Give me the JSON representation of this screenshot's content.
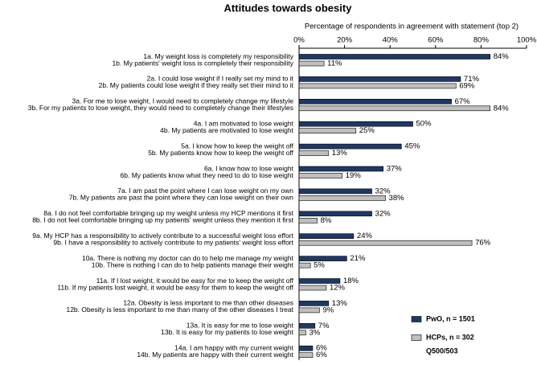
{
  "chart_data": {
    "type": "bar",
    "orientation": "horizontal",
    "title": "Attitudes towards obesity",
    "x_label": "Percentage of respondents in agreement with statement (top 2)",
    "xlim": [
      0,
      100
    ],
    "xticks": [
      {
        "value": 0,
        "label": "0%"
      },
      {
        "value": 20,
        "label": "20%"
      },
      {
        "value": 40,
        "label": "40%"
      },
      {
        "value": 60,
        "label": "60%"
      },
      {
        "value": 80,
        "label": "80%"
      },
      {
        "value": 100,
        "label": "100%"
      }
    ],
    "series": [
      {
        "name": "PwO, n = 1501",
        "color": "#1f3864",
        "labels": [
          "1a. My weight loss is completely my responsibility",
          "2a. I could lose weight if I really set my mind to it",
          "3a. For me to lose weight, I would need to completely change my lifestyle",
          "4a. I am motivated to lose weight",
          "5a. I know how to keep the weight off",
          "6a. I know how to lose weight",
          "7a. I am past the point where I can lose weight on my own",
          "8a. I do not feel comfortable bringing up my weight unless my HCP mentions it first",
          "9a. My HCP has a responsibility to actively contribute to a successful weight loss effort",
          "10a. There is nothing my doctor can do to help me manage my weight",
          "11a. If I lost weight, it would be easy for me to keep the weight off",
          "12a. Obesity is less important to me than other diseases",
          "13a. It is easy for me to lose weight",
          "14a. I am happy with my current weight"
        ],
        "values": [
          84,
          71,
          67,
          50,
          45,
          37,
          32,
          32,
          24,
          21,
          18,
          13,
          7,
          6
        ],
        "value_labels": [
          "84%",
          "71%",
          "67%",
          "50%",
          "45%",
          "37%",
          "32%",
          "32%",
          "24%",
          "21%",
          "18%",
          "13%",
          "7%",
          "6%"
        ]
      },
      {
        "name": "HCPs, n = 302",
        "color": "#bfbfbf",
        "labels": [
          "1b. My patients' weight loss is completely their responsibility",
          "2b. My patients could lose weight if they really set their mind to it",
          "3b. For my patients to lose weight, they would need to completely change their lifestyles",
          "4b. My patients are motivated to lose weight",
          "5b. My patients know how to keep the weight off",
          "6b. My patients know what they need to do to lose weight",
          "7b. My patients are past the point where they can lose weight on their own",
          "8b. I do not feel comfortable bringing up my patients' weight unless they mention it first",
          "9b. I have a responsibility to actively contribute to my patients' weight loss effort",
          "10b. There is nothing I can do to help patients manage their weight",
          "11b. If my patients lost weight, it would be easy for them to keep the weight off",
          "12b. Obesity is less important to me than many of the other diseases I treat",
          "13b. It is easy for my patients to lose weight",
          "14b. My patients are happy with their current weight"
        ],
        "values": [
          11,
          69,
          84,
          25,
          13,
          19,
          38,
          8,
          76,
          5,
          12,
          9,
          3,
          6
        ],
        "value_labels": [
          "11%",
          "69%",
          "84%",
          "25%",
          "13%",
          "19%",
          "38%",
          "8%",
          "76%",
          "5%",
          "12%",
          "9%",
          "3%",
          "6%"
        ]
      }
    ],
    "annotation": "Q500/503"
  }
}
